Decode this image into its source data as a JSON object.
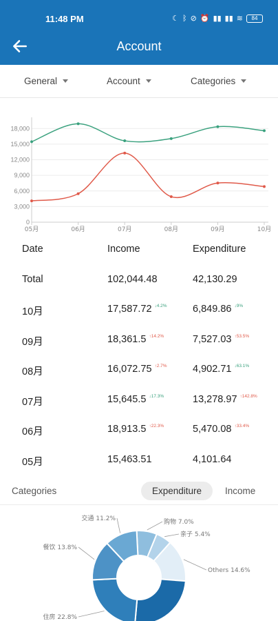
{
  "status": {
    "time": "11:48 PM",
    "battery": "84"
  },
  "header": {
    "title": "Account"
  },
  "filters": [
    {
      "label": "General"
    },
    {
      "label": "Account"
    },
    {
      "label": "Categories"
    }
  ],
  "chart_data": {
    "type": "line",
    "categories": [
      "05月",
      "06月",
      "07月",
      "08月",
      "09月",
      "10月"
    ],
    "series": [
      {
        "values": [
          15463.51,
          18913.5,
          15645.5,
          16072.75,
          18361.5,
          17587.72
        ],
        "color": "#3aa17e"
      },
      {
        "values": [
          4101.64,
          5470.08,
          13278.97,
          4902.71,
          7527.03,
          6849.86
        ],
        "color": "#e05a4a"
      }
    ],
    "yticks": [
      "0",
      "3,000",
      "6,000",
      "9,000",
      "12,000",
      "15,000",
      "18,000"
    ],
    "ylim": [
      0,
      19500
    ],
    "grid": true
  },
  "table": {
    "headers": {
      "date": "Date",
      "income": "Income",
      "expenditure": "Expenditure"
    },
    "rows": [
      {
        "date": "Total",
        "income": "102,044.48",
        "income_pct": "",
        "income_dir": "",
        "exp": "42,130.29",
        "exp_pct": "",
        "exp_dir": ""
      },
      {
        "date": "10月",
        "income": "17,587.72",
        "income_pct": "↓4.2%",
        "income_dir": "down",
        "exp": "6,849.86",
        "exp_pct": "↓9%",
        "exp_dir": "down"
      },
      {
        "date": "09月",
        "income": "18,361.5",
        "income_pct": "↑14.2%",
        "income_dir": "up",
        "exp": "7,527.03",
        "exp_pct": "↑53.5%",
        "exp_dir": "up"
      },
      {
        "date": "08月",
        "income": "16,072.75",
        "income_pct": "↑2.7%",
        "income_dir": "up",
        "exp": "4,902.71",
        "exp_pct": "↓63.1%",
        "exp_dir": "down"
      },
      {
        "date": "07月",
        "income": "15,645.5",
        "income_pct": "↓17.3%",
        "income_dir": "down",
        "exp": "13,278.97",
        "exp_pct": "↑142.8%",
        "exp_dir": "up"
      },
      {
        "date": "06月",
        "income": "18,913.5",
        "income_pct": "↑22.3%",
        "income_dir": "up",
        "exp": "5,470.08",
        "exp_pct": "↑33.4%",
        "exp_dir": "up"
      },
      {
        "date": "05月",
        "income": "15,463.51",
        "income_pct": "",
        "income_dir": "",
        "exp": "4,101.64",
        "exp_pct": "",
        "exp_dir": ""
      }
    ]
  },
  "categories": {
    "label": "Categories",
    "expenditure_tab": "Expenditure",
    "income_tab": "Income"
  },
  "pie_data": {
    "type": "pie",
    "slices": [
      {
        "label": "购物 7.0%",
        "value": 7.0,
        "color": "#8fbede"
      },
      {
        "label": "亲子 5.4%",
        "value": 5.4,
        "color": "#b3d3ea"
      },
      {
        "label": "Others 14.6%",
        "value": 14.6,
        "color": "#e2eef7"
      },
      {
        "label": "住房",
        "value": 25.2,
        "color": "#1b6aa8"
      },
      {
        "label": "住房 22.8%",
        "value": 22.8,
        "color": "#2f7fba"
      },
      {
        "label": "餐饮 13.8%",
        "value": 13.8,
        "color": "#4d92c6"
      },
      {
        "label": "交通 11.2%",
        "value": 11.2,
        "color": "#6aa8d3"
      }
    ]
  }
}
